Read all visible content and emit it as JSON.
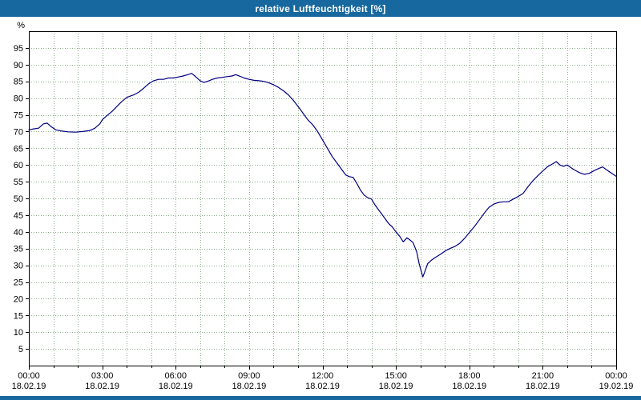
{
  "window": {
    "title": "relative Luftfeuchtigkeit [%]"
  },
  "colors": {
    "titlebar": "#17689e",
    "background": "#ffffff",
    "plot_border": "#000000",
    "grid": "#8fae8f",
    "line": "#000080"
  },
  "chart_data": {
    "type": "line",
    "title": "relative Luftfeuchtigkeit [%]",
    "unit_label": "%",
    "ylim": [
      0,
      100
    ],
    "xlim_hours": [
      0,
      24
    ],
    "grid": "dotted, every hour vertical, every 5% horizontal",
    "legend_position": "none",
    "y_ticks": [
      5,
      10,
      15,
      20,
      25,
      30,
      35,
      40,
      45,
      50,
      55,
      60,
      65,
      70,
      75,
      80,
      85,
      90,
      95
    ],
    "x_ticks": [
      {
        "hour": 0,
        "time": "00:00",
        "date": "18.02.19"
      },
      {
        "hour": 3,
        "time": "03:00",
        "date": "18.02.19"
      },
      {
        "hour": 6,
        "time": "06:00",
        "date": "18.02.19"
      },
      {
        "hour": 9,
        "time": "09:00",
        "date": "18.02.19"
      },
      {
        "hour": 12,
        "time": "12:00",
        "date": "18.02.19"
      },
      {
        "hour": 15,
        "time": "15:00",
        "date": "18.02.19"
      },
      {
        "hour": 18,
        "time": "18:00",
        "date": "18.02.19"
      },
      {
        "hour": 21,
        "time": "21:00",
        "date": "18.02.19"
      },
      {
        "hour": 24,
        "time": "00:00",
        "date": "19.02.19"
      }
    ],
    "series": [
      {
        "name": "relative Luftfeuchtigkeit",
        "color": "#000080",
        "points": [
          [
            0,
            70.5
          ],
          [
            0.2,
            70.8
          ],
          [
            0.4,
            71.0
          ],
          [
            0.6,
            72.3
          ],
          [
            0.75,
            72.5
          ],
          [
            0.9,
            71.5
          ],
          [
            1.1,
            70.5
          ],
          [
            1.3,
            70.2
          ],
          [
            1.6,
            69.9
          ],
          [
            1.9,
            69.8
          ],
          [
            2.2,
            70.0
          ],
          [
            2.5,
            70.3
          ],
          [
            2.7,
            71.0
          ],
          [
            2.9,
            72.3
          ],
          [
            3.0,
            73.5
          ],
          [
            3.2,
            74.8
          ],
          [
            3.4,
            76.0
          ],
          [
            3.6,
            77.5
          ],
          [
            3.8,
            79.0
          ],
          [
            4.0,
            80.2
          ],
          [
            4.15,
            80.6
          ],
          [
            4.3,
            81.0
          ],
          [
            4.5,
            81.8
          ],
          [
            4.7,
            83.0
          ],
          [
            4.9,
            84.3
          ],
          [
            5.1,
            85.2
          ],
          [
            5.3,
            85.6
          ],
          [
            5.5,
            85.6
          ],
          [
            5.7,
            86.0
          ],
          [
            5.9,
            86.0
          ],
          [
            6.1,
            86.3
          ],
          [
            6.3,
            86.6
          ],
          [
            6.5,
            87.0
          ],
          [
            6.65,
            87.4
          ],
          [
            6.8,
            86.5
          ],
          [
            7.0,
            85.2
          ],
          [
            7.15,
            84.7
          ],
          [
            7.3,
            85.0
          ],
          [
            7.5,
            85.6
          ],
          [
            7.7,
            86.0
          ],
          [
            7.9,
            86.2
          ],
          [
            8.1,
            86.4
          ],
          [
            8.3,
            86.6
          ],
          [
            8.45,
            87.0
          ],
          [
            8.6,
            86.6
          ],
          [
            8.8,
            86.0
          ],
          [
            9.0,
            85.6
          ],
          [
            9.2,
            85.3
          ],
          [
            9.4,
            85.2
          ],
          [
            9.6,
            85.0
          ],
          [
            9.8,
            84.6
          ],
          [
            10.0,
            84.0
          ],
          [
            10.2,
            83.2
          ],
          [
            10.4,
            82.2
          ],
          [
            10.6,
            81.0
          ],
          [
            10.8,
            79.4
          ],
          [
            11.0,
            77.5
          ],
          [
            11.2,
            75.5
          ],
          [
            11.4,
            73.5
          ],
          [
            11.6,
            72.0
          ],
          [
            11.8,
            70.0
          ],
          [
            12.0,
            67.5
          ],
          [
            12.2,
            65.0
          ],
          [
            12.4,
            62.5
          ],
          [
            12.6,
            60.5
          ],
          [
            12.8,
            58.5
          ],
          [
            12.95,
            57.0
          ],
          [
            13.1,
            56.5
          ],
          [
            13.25,
            56.3
          ],
          [
            13.4,
            54.5
          ],
          [
            13.55,
            52.5
          ],
          [
            13.7,
            51.0
          ],
          [
            13.85,
            50.2
          ],
          [
            14.0,
            49.8
          ],
          [
            14.15,
            48.0
          ],
          [
            14.3,
            46.5
          ],
          [
            14.5,
            44.5
          ],
          [
            14.7,
            42.5
          ],
          [
            14.85,
            41.5
          ],
          [
            15.0,
            40.0
          ],
          [
            15.15,
            38.7
          ],
          [
            15.3,
            37.0
          ],
          [
            15.45,
            38.2
          ],
          [
            15.55,
            37.7
          ],
          [
            15.7,
            36.8
          ],
          [
            15.85,
            34.0
          ],
          [
            15.95,
            30.5
          ],
          [
            16.1,
            26.5
          ],
          [
            16.2,
            28.5
          ],
          [
            16.3,
            30.5
          ],
          [
            16.45,
            31.5
          ],
          [
            16.6,
            32.3
          ],
          [
            16.8,
            33.2
          ],
          [
            17.0,
            34.2
          ],
          [
            17.2,
            35.0
          ],
          [
            17.4,
            35.6
          ],
          [
            17.6,
            36.5
          ],
          [
            17.8,
            38.0
          ],
          [
            18.0,
            39.8
          ],
          [
            18.2,
            41.5
          ],
          [
            18.4,
            43.5
          ],
          [
            18.6,
            45.5
          ],
          [
            18.8,
            47.3
          ],
          [
            19.0,
            48.3
          ],
          [
            19.2,
            48.8
          ],
          [
            19.4,
            49.0
          ],
          [
            19.6,
            49.0
          ],
          [
            19.8,
            49.8
          ],
          [
            20.0,
            50.6
          ],
          [
            20.2,
            51.5
          ],
          [
            20.4,
            53.5
          ],
          [
            20.6,
            55.3
          ],
          [
            20.8,
            56.8
          ],
          [
            21.0,
            58.2
          ],
          [
            21.2,
            59.5
          ],
          [
            21.4,
            60.3
          ],
          [
            21.55,
            61.0
          ],
          [
            21.7,
            60.0
          ],
          [
            21.85,
            59.6
          ],
          [
            22.0,
            60.0
          ],
          [
            22.15,
            59.2
          ],
          [
            22.3,
            58.5
          ],
          [
            22.5,
            57.7
          ],
          [
            22.7,
            57.2
          ],
          [
            22.9,
            57.5
          ],
          [
            23.1,
            58.3
          ],
          [
            23.3,
            59.0
          ],
          [
            23.45,
            59.4
          ],
          [
            23.6,
            58.6
          ],
          [
            23.8,
            57.6
          ],
          [
            24.0,
            56.6
          ]
        ]
      }
    ]
  }
}
